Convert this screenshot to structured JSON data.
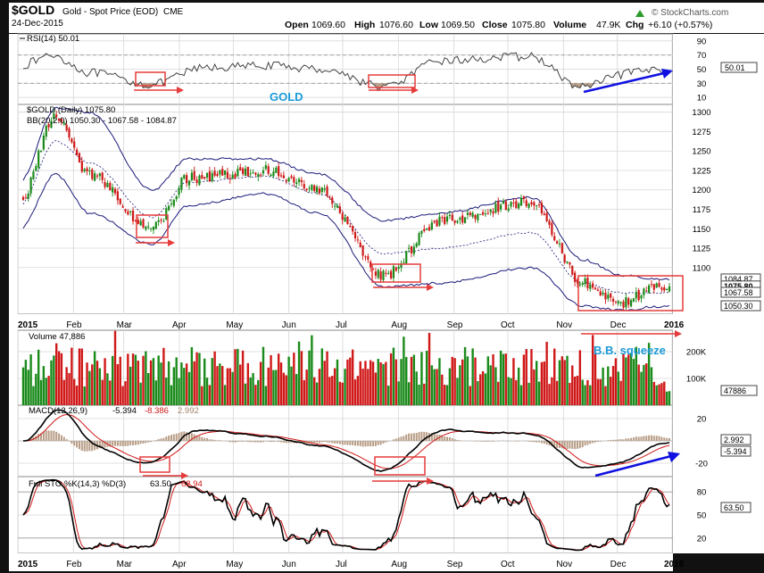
{
  "header": {
    "symbol": "$GOLD",
    "name": "Gold - Spot Price (EOD)",
    "exchange": "CME",
    "date": "24-Dec-2015",
    "open_label": "Open",
    "open": "1069.60",
    "high_label": "High",
    "high": "1076.60",
    "low_label": "Low",
    "low": "1069.50",
    "close_label": "Close",
    "close": "1075.80",
    "volume_label": "Volume",
    "volume": "47.9K",
    "chg_label": "Chg",
    "chg": "+6.10 (+0.57%)",
    "watermark": "© StockCharts.com",
    "arrow_icon": "up-triangle-icon"
  },
  "colors": {
    "up_candle": "#1a8a1a",
    "down_candle": "#d01818",
    "bollinger": "#1a1a7a",
    "annotation_box": "#e53c3c",
    "annotation_blue": "#1010e0",
    "annotation_text": "#1a9ad8",
    "macd_hist": "#b89d86"
  },
  "months": [
    "2015",
    "Feb",
    "Mar",
    "Apr",
    "May",
    "Jun",
    "Jul",
    "Aug",
    "Sep",
    "Oct",
    "Nov",
    "Dec",
    "2016"
  ],
  "chart_data": [
    {
      "panel": "rsi",
      "type": "line",
      "legend": "RSI(14) 50.01",
      "last": "50.01",
      "yticks": [
        10,
        30,
        50,
        70,
        90
      ],
      "ylim": [
        0,
        100
      ],
      "annotation_text": "GOLD",
      "x": [
        "2015-01-02",
        "2015-01-20",
        "2015-02-10",
        "2015-03-16",
        "2015-04-15",
        "2015-05-20",
        "2015-06-20",
        "2015-07-24",
        "2015-08-25",
        "2015-10-14",
        "2015-11-10",
        "2015-12-10",
        "2015-12-24"
      ],
      "y": [
        55,
        70,
        45,
        28,
        52,
        55,
        50,
        25,
        62,
        68,
        25,
        45,
        50
      ]
    },
    {
      "panel": "price",
      "type": "candlestick",
      "legend": "$GOLD (Daily) 1075.80",
      "bb_legend": "BB(20,2.0) 1050.30 - 1067.58 - 1084.87",
      "yticks": [
        1100,
        1125,
        1150,
        1175,
        1200,
        1225,
        1250,
        1275,
        1300
      ],
      "ylim": [
        1040,
        1310
      ],
      "price_tags": [
        "1084.87",
        "1075.80",
        "1067.58",
        "1050.30"
      ],
      "x": [
        "2015-01-02",
        "2015-01-22",
        "2015-02-10",
        "2015-03-17",
        "2015-04-06",
        "2015-05-18",
        "2015-06-18",
        "2015-07-24",
        "2015-08-24",
        "2015-10-14",
        "2015-11-12",
        "2015-12-03",
        "2015-12-24"
      ],
      "close": [
        1185,
        1295,
        1220,
        1150,
        1215,
        1225,
        1200,
        1090,
        1160,
        1185,
        1080,
        1055,
        1075.8
      ],
      "bb_upper": [
        1210,
        1305,
        1300,
        1200,
        1240,
        1240,
        1220,
        1160,
        1170,
        1190,
        1110,
        1090,
        1085
      ],
      "bb_lower": [
        1150,
        1220,
        1170,
        1130,
        1180,
        1195,
        1170,
        1075,
        1080,
        1100,
        1050,
        1045,
        1050
      ]
    },
    {
      "panel": "volume",
      "type": "bar",
      "legend": "Volume 47,886",
      "last": "47886",
      "yticks": [
        "100K",
        "200K"
      ],
      "annotation_text": "B.B. squeeze"
    },
    {
      "panel": "macd",
      "type": "line",
      "legend_name": "MACD(12,26,9)",
      "macd": "-5.394",
      "signal": "-8.386",
      "histogram": "2.992",
      "yticks": [
        -20,
        0,
        20
      ],
      "tags": [
        "2.992",
        "-5.394"
      ]
    },
    {
      "panel": "stochastic",
      "type": "line",
      "legend_name": "Full STO %K(14,3) %D(3)",
      "k": "63.50",
      "d": "62.94",
      "yticks": [
        20,
        50,
        80
      ],
      "tags": [
        "63.50"
      ]
    }
  ]
}
